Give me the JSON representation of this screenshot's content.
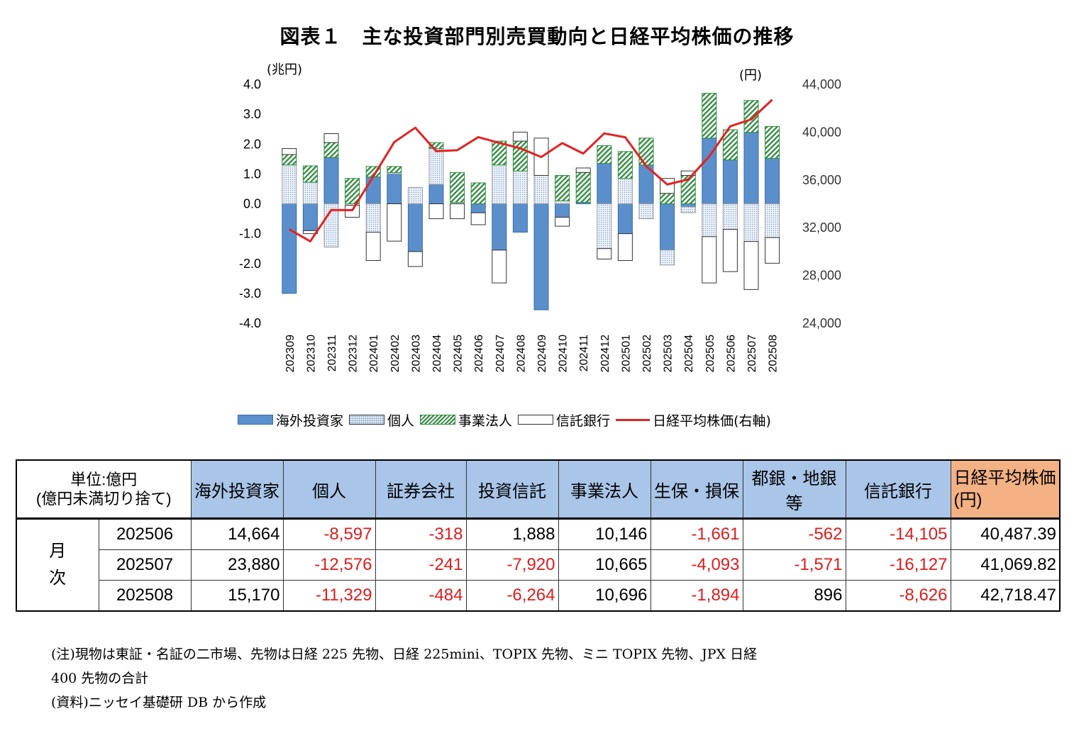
{
  "title": "図表１　主な投資部門別売買動向と日経平均株価の推移",
  "chart_data": {
    "type": "bar",
    "stacked": true,
    "left_axis_unit": "(兆円)",
    "right_axis_unit": "(円)",
    "left_ylim": [
      -4.0,
      4.0
    ],
    "right_ylim": [
      24000,
      44000
    ],
    "left_ticks": [
      "4.0",
      "3.0",
      "2.0",
      "1.0",
      "0.0",
      "-1.0",
      "-2.0",
      "-3.0",
      "-4.0"
    ],
    "right_ticks": [
      "44,000",
      "40,000",
      "36,000",
      "32,000",
      "28,000",
      "24,000"
    ],
    "categories": [
      "202309",
      "202310",
      "202311",
      "202312",
      "202401",
      "202402",
      "202403",
      "202404",
      "202405",
      "202406",
      "202407",
      "202408",
      "202409",
      "202410",
      "202411",
      "202412",
      "202501",
      "202502",
      "202503",
      "202504",
      "202505",
      "202506",
      "202507",
      "202508"
    ],
    "series": [
      {
        "name": "海外投資家",
        "color": "#5b8fcc",
        "values": [
          -3.0,
          -0.9,
          1.55,
          0.0,
          0.9,
          1.0,
          -1.6,
          0.65,
          0.0,
          -0.3,
          -1.55,
          -0.95,
          -3.55,
          -0.45,
          0.05,
          1.35,
          -1.0,
          1.3,
          -1.55,
          -0.1,
          2.2,
          1.47,
          2.39,
          1.52
        ]
      },
      {
        "name": "個人",
        "color": "#eef3fa",
        "values": [
          1.3,
          0.72,
          -1.45,
          -0.05,
          -0.95,
          0.05,
          0.55,
          1.2,
          0.05,
          0.0,
          1.3,
          1.1,
          0.95,
          0.1,
          0.0,
          -1.5,
          0.85,
          -0.5,
          -0.5,
          -0.2,
          -1.1,
          -0.86,
          -1.26,
          -1.13
        ]
      },
      {
        "name": "事業法人",
        "color": "#2e8b3e",
        "values": [
          0.35,
          0.55,
          0.5,
          0.85,
          0.35,
          0.2,
          0.0,
          0.2,
          1.0,
          0.7,
          0.8,
          1.0,
          0.0,
          0.85,
          1.0,
          0.6,
          0.9,
          0.9,
          0.35,
          0.95,
          1.5,
          1.01,
          1.07,
          1.07
        ]
      },
      {
        "name": "信託銀行",
        "color": "#ffffff",
        "values": [
          0.2,
          -0.1,
          0.3,
          -0.4,
          -0.95,
          -1.25,
          -0.5,
          -0.5,
          -0.5,
          -0.4,
          -1.1,
          0.3,
          1.25,
          -0.3,
          0.15,
          -0.35,
          -0.9,
          0.0,
          0.5,
          0.15,
          -1.55,
          -1.41,
          -1.61,
          -0.86
        ]
      }
    ],
    "line_series": {
      "name": "日経平均株価(右軸)",
      "color": "#e32222",
      "values": [
        31857,
        30858,
        33486,
        33464,
        36287,
        39166,
        40369,
        38406,
        38488,
        39583,
        39101,
        38648,
        37919,
        39081,
        38208,
        39894,
        39572,
        37155,
        35617,
        36045,
        37965,
        40487,
        41070,
        42718
      ]
    }
  },
  "legend": {
    "foreign": "海外投資家",
    "individual": "個人",
    "corporate": "事業法人",
    "trust": "信託銀行",
    "nikkei": "日経平均株価(右軸)"
  },
  "table": {
    "corner_line1": "単位:億円",
    "corner_line2": "(億円未満切り捨て)",
    "headers": [
      "海外投資家",
      "個人",
      "証券会社",
      "投資信託",
      "事業法人",
      "生保・損保",
      "都銀・地銀等",
      "信託銀行"
    ],
    "nikkei_header_line1": "日経平均株価",
    "nikkei_header_line2": "(円)",
    "row_group_line1": "月",
    "row_group_line2": "次",
    "rows": [
      {
        "period": "202506",
        "values": [
          "14,664",
          "-8,597",
          "-318",
          "1,888",
          "10,146",
          "-1,661",
          "-562",
          "-14,105",
          "40,487.39"
        ]
      },
      {
        "period": "202507",
        "values": [
          "23,880",
          "-12,576",
          "-241",
          "-7,920",
          "10,665",
          "-4,093",
          "-1,571",
          "-16,127",
          "41,069.82"
        ]
      },
      {
        "period": "202508",
        "values": [
          "15,170",
          "-11,329",
          "-484",
          "-6,264",
          "10,696",
          "-1,894",
          "896",
          "-8,626",
          "42,718.47"
        ]
      }
    ]
  },
  "notes": {
    "line1": "(注)現物は東証・名証の二市場、先物は日経 225 先物、日経 225mini、TOPIX 先物、ミニ TOPIX 先物、JPX 日経",
    "line2": "400 先物の合計",
    "line3": "(資料)ニッセイ基礎研 DB から作成"
  }
}
